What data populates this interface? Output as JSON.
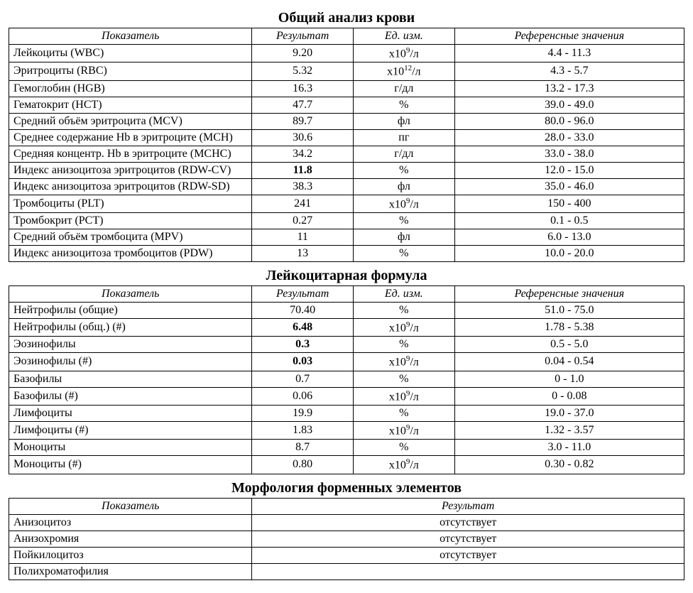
{
  "layout": {
    "text_color": "#000000",
    "bg_color": "#ffffff",
    "border_color": "#000000",
    "font_family": "Times New Roman",
    "title_fontsize": 20,
    "cell_fontsize": 16
  },
  "sections": {
    "cbc": {
      "title": "Общий анализ крови",
      "headers": {
        "name": "Показатель",
        "result": "Результат",
        "unit": "Ед. изм.",
        "ref": "Референсные значения"
      },
      "rows": [
        {
          "name": "Лейкоциты (WBC)",
          "result": "9.20",
          "unit": "x10⁹/л",
          "ref": "4.4 - 11.3",
          "bold": false
        },
        {
          "name": "Эритроциты (RBC)",
          "result": "5.32",
          "unit": "x10¹²/л",
          "ref": "4.3 - 5.7",
          "bold": false
        },
        {
          "name": "Гемоглобин (HGB)",
          "result": "16.3",
          "unit": "г/дл",
          "ref": "13.2 - 17.3",
          "bold": false
        },
        {
          "name": "Гематокрит (HCT)",
          "result": "47.7",
          "unit": "%",
          "ref": "39.0 - 49.0",
          "bold": false
        },
        {
          "name": "Средний объём эритроцита (MCV)",
          "result": "89.7",
          "unit": "фл",
          "ref": "80.0 - 96.0",
          "bold": false
        },
        {
          "name": "Среднее содержание Hb в эритроците (MCH)",
          "result": "30.6",
          "unit": "пг",
          "ref": "28.0 - 33.0",
          "bold": false
        },
        {
          "name": "Средняя концентр. Hb в эритроците (MCHC)",
          "result": "34.2",
          "unit": "г/дл",
          "ref": "33.0 - 38.0",
          "bold": false
        },
        {
          "name": "Индекс анизоцитоза эритроцитов (RDW-CV)",
          "result": "11.8",
          "unit": "%",
          "ref": "12.0 - 15.0",
          "bold": true
        },
        {
          "name": "Индекс анизоцитоза эритроцитов (RDW-SD)",
          "result": "38.3",
          "unit": "фл",
          "ref": "35.0 - 46.0",
          "bold": false
        },
        {
          "name": "Тромбоциты (PLT)",
          "result": "241",
          "unit": "x10⁹/л",
          "ref": "150 - 400",
          "bold": false
        },
        {
          "name": "Тромбокрит (PCT)",
          "result": "0.27",
          "unit": "%",
          "ref": "0.1 - 0.5",
          "bold": false
        },
        {
          "name": "Средний объём тромбоцита (MPV)",
          "result": "11",
          "unit": "фл",
          "ref": "6.0 - 13.0",
          "bold": false
        },
        {
          "name": "Индекс анизоцитоза тромбоцитов (PDW)",
          "result": "13",
          "unit": "%",
          "ref": "10.0 - 20.0",
          "bold": false
        }
      ]
    },
    "wbc": {
      "title": "Лейкоцитарная формула",
      "headers": {
        "name": "Показатель",
        "result": "Результат",
        "unit": "Ед. изм.",
        "ref": "Референсные значения"
      },
      "rows": [
        {
          "name": "Нейтрофилы (общие)",
          "result": "70.40",
          "unit": "%",
          "ref": "51.0 - 75.0",
          "bold": false
        },
        {
          "name": "Нейтрофилы (общ.) (#)",
          "result": "6.48",
          "unit": "x10⁹/л",
          "ref": "1.78 - 5.38",
          "bold": true
        },
        {
          "name": "Эозинофилы",
          "result": "0.3",
          "unit": "%",
          "ref": "0.5 - 5.0",
          "bold": true
        },
        {
          "name": "Эозинофилы (#)",
          "result": "0.03",
          "unit": "x10⁹/л",
          "ref": "0.04 - 0.54",
          "bold": true
        },
        {
          "name": "Базофилы",
          "result": "0.7",
          "unit": "%",
          "ref": "0 - 1.0",
          "bold": false
        },
        {
          "name": "Базофилы (#)",
          "result": "0.06",
          "unit": "x10⁹/л",
          "ref": "0 - 0.08",
          "bold": false
        },
        {
          "name": "Лимфоциты",
          "result": "19.9",
          "unit": "%",
          "ref": "19.0 - 37.0",
          "bold": false
        },
        {
          "name": "Лимфоциты (#)",
          "result": "1.83",
          "unit": "x10⁹/л",
          "ref": "1.32 - 3.57",
          "bold": false
        },
        {
          "name": "Моноциты",
          "result": "8.7",
          "unit": "%",
          "ref": "3.0 - 11.0",
          "bold": false
        },
        {
          "name": "Моноциты (#)",
          "result": "0.80",
          "unit": "x10⁹/л",
          "ref": "0.30 - 0.82",
          "bold": false
        }
      ]
    },
    "morph": {
      "title": "Морфология форменных элементов",
      "headers": {
        "name": "Показатель",
        "result": "Результат"
      },
      "rows": [
        {
          "name": "Анизоцитоз",
          "result": "отсутствует"
        },
        {
          "name": "Анизохромия",
          "result": "отсутствует"
        },
        {
          "name": "Пойкилоцитоз",
          "result": "отсутствует"
        },
        {
          "name": "Полихроматофилия",
          "result": ""
        }
      ]
    }
  }
}
